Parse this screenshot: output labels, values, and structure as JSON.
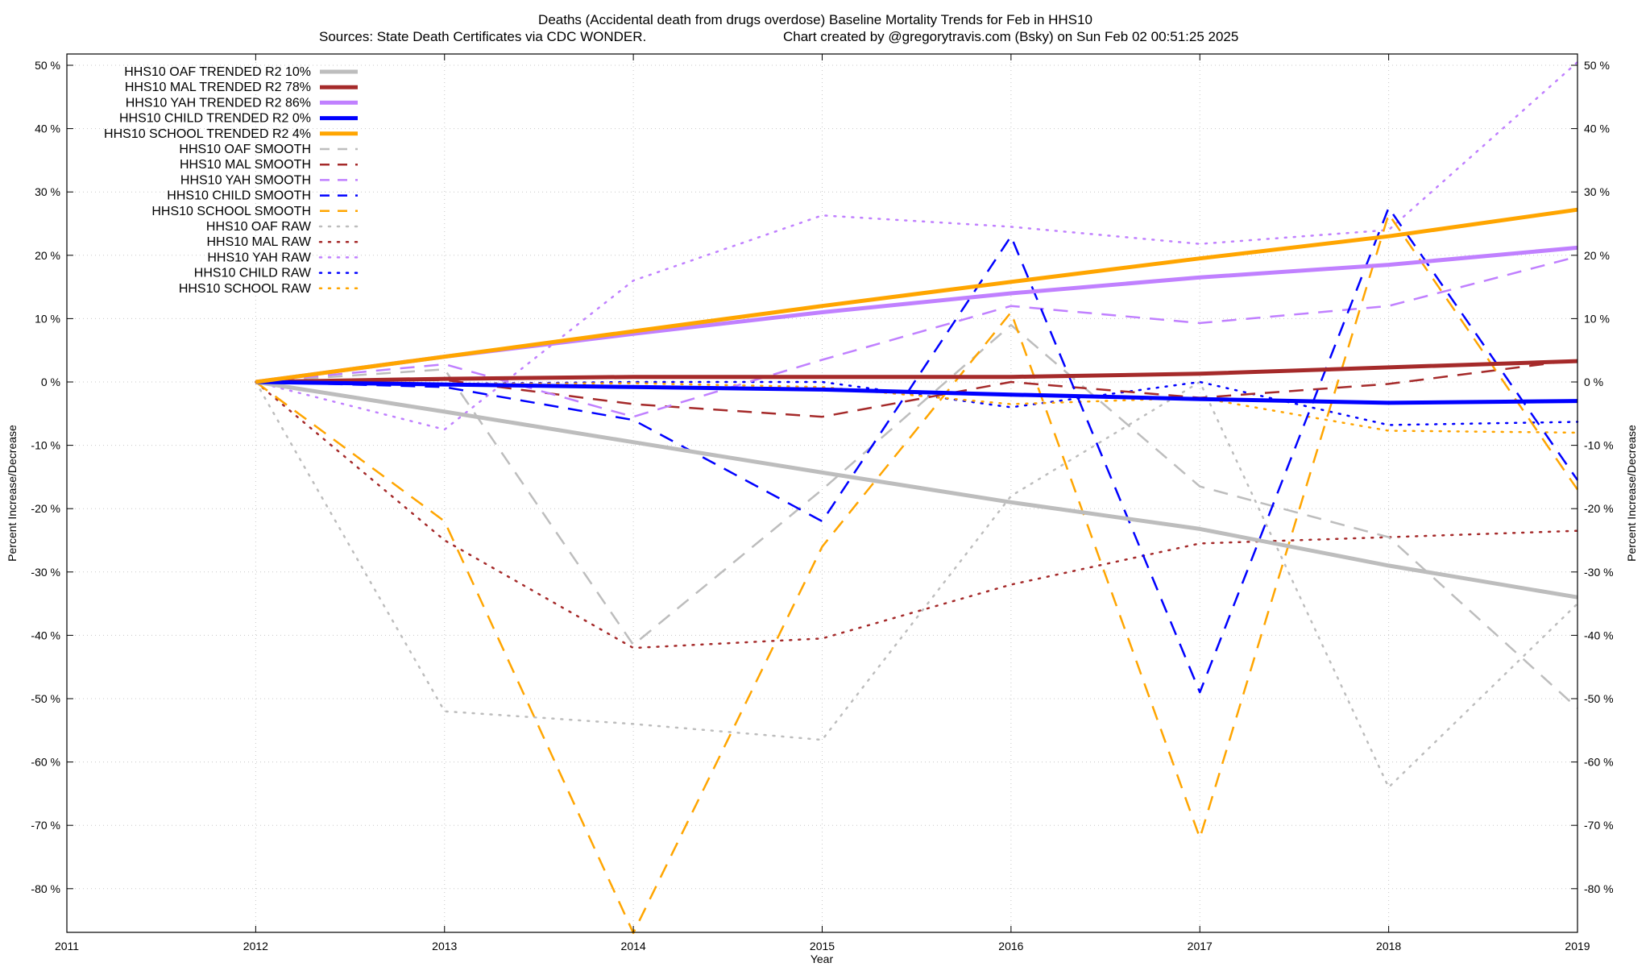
{
  "chart_data": {
    "type": "line",
    "title": "Deaths (Accidental death from drugs overdose)  Baseline Mortality Trends for Feb in HHS10",
    "subtitle_left": "Sources: State Death Certificates via CDC WONDER.",
    "subtitle_right": "Chart created by @gregorytravis.com (Bsky) on Sun Feb 02 00:51:25 2025",
    "xlabel": "Year",
    "ylabel": "Percent Increase/Decrease",
    "ylabel_right": "Percent Increase/Decrease",
    "xlim": [
      2011,
      2019
    ],
    "ylim": [
      -88,
      51
    ],
    "x_ticks": [
      2011,
      2012,
      2013,
      2014,
      2015,
      2016,
      2017,
      2018,
      2019
    ],
    "y_ticks": [
      50,
      40,
      30,
      20,
      10,
      0,
      -10,
      -20,
      -30,
      -40,
      -50,
      -60,
      -70,
      -80
    ],
    "y_tick_labels": [
      "50 %",
      "40 %",
      "30 %",
      "20 %",
      "10 %",
      "0 %",
      "-10 %",
      "-20 %",
      "-30 %",
      "-40 %",
      "-50 %",
      "-60 %",
      "-70 %",
      "-80 %"
    ],
    "grid": true,
    "legend_position": "top-left",
    "series": [
      {
        "name": "HHS10 OAF TRENDED R2  10%",
        "style": "solid",
        "color": "#bdbdbd",
        "x": [
          2012,
          2013,
          2014,
          2015,
          2016,
          2017,
          2018,
          2019
        ],
        "y": [
          0,
          -4.7,
          -9.5,
          -14.3,
          -19.0,
          -23.2,
          -29.0,
          -34.0
        ]
      },
      {
        "name": "HHS10 MAL TRENDED R2  78%",
        "style": "solid",
        "color": "#a52a2a",
        "x": [
          2012,
          2013,
          2014,
          2015,
          2016,
          2017,
          2018,
          2019
        ],
        "y": [
          0,
          0.5,
          0.8,
          0.8,
          0.8,
          1.3,
          2.3,
          3.3
        ]
      },
      {
        "name": "HHS10 YAH TRENDED R2  86%",
        "style": "solid",
        "color": "#c080ff",
        "x": [
          2012,
          2013,
          2014,
          2015,
          2016,
          2017,
          2018,
          2019
        ],
        "y": [
          0,
          4.0,
          7.6,
          11.0,
          14.0,
          16.5,
          18.5,
          21.2
        ]
      },
      {
        "name": "HHS10 CHILD TRENDED R2  0%",
        "style": "solid",
        "color": "#0000ff",
        "x": [
          2012,
          2013,
          2014,
          2015,
          2016,
          2017,
          2018,
          2019
        ],
        "y": [
          0,
          -0.4,
          -0.8,
          -1.2,
          -2.0,
          -2.7,
          -3.3,
          -3.0
        ]
      },
      {
        "name": "HHS10 SCHOOL TRENDED R2  4%",
        "style": "solid",
        "color": "#ffa500",
        "x": [
          2012,
          2013,
          2014,
          2015,
          2016,
          2017,
          2018,
          2019
        ],
        "y": [
          0,
          4.0,
          8.0,
          12.0,
          15.8,
          19.5,
          23.0,
          27.2
        ]
      },
      {
        "name": "HHS10 OAF SMOOTH",
        "style": "dashed",
        "color": "#bdbdbd",
        "x": [
          2012,
          2013,
          2014,
          2015,
          2016,
          2017,
          2018,
          2019
        ],
        "y": [
          0,
          2.0,
          -41.5,
          -17.0,
          9.0,
          -16.5,
          -24.5,
          -51.5
        ]
      },
      {
        "name": "HHS10 MAL SMOOTH",
        "style": "dashed",
        "color": "#a52a2a",
        "x": [
          2012,
          2013,
          2014,
          2015,
          2016,
          2017,
          2018,
          2019
        ],
        "y": [
          0,
          0.3,
          -3.5,
          -5.5,
          0,
          -2.5,
          -0.3,
          3.5
        ]
      },
      {
        "name": "HHS10 YAH SMOOTH",
        "style": "dashed",
        "color": "#c080ff",
        "x": [
          2012,
          2013,
          2014,
          2015,
          2016,
          2017,
          2018,
          2019
        ],
        "y": [
          0,
          2.8,
          -5.5,
          3.5,
          12.0,
          9.3,
          12.0,
          19.8
        ]
      },
      {
        "name": "HHS10 CHILD SMOOTH",
        "style": "dashed",
        "color": "#0000ff",
        "x": [
          2012,
          2013,
          2014,
          2015,
          2016,
          2017,
          2018,
          2019
        ],
        "y": [
          0,
          -0.8,
          -6.0,
          -22.0,
          23.0,
          -49.0,
          27.5,
          -15.5
        ]
      },
      {
        "name": "HHS10 SCHOOL SMOOTH",
        "style": "dashed",
        "color": "#ffa500",
        "x": [
          2012,
          2013,
          2014,
          2015,
          2016,
          2017,
          2018,
          2019
        ],
        "y": [
          0,
          -22.0,
          -87.0,
          -26.0,
          11.0,
          -72.0,
          26.5,
          -17.0
        ]
      },
      {
        "name": "HHS10 OAF RAW",
        "style": "dotted",
        "color": "#bdbdbd",
        "x": [
          2012,
          2013,
          2014,
          2015,
          2016,
          2017,
          2018,
          2019
        ],
        "y": [
          0,
          -52.0,
          -54.0,
          -56.5,
          -18.0,
          0,
          -64.0,
          -35.0
        ]
      },
      {
        "name": "HHS10 MAL RAW",
        "style": "dotted",
        "color": "#a52a2a",
        "x": [
          2012,
          2013,
          2014,
          2015,
          2016,
          2017,
          2018,
          2019
        ],
        "y": [
          0,
          -25.0,
          -42.0,
          -40.5,
          -32.0,
          -25.5,
          -24.5,
          -23.5
        ]
      },
      {
        "name": "HHS10 YAH RAW",
        "style": "dotted",
        "color": "#c080ff",
        "x": [
          2012,
          2013,
          2014,
          2015,
          2016,
          2017,
          2018,
          2019
        ],
        "y": [
          0,
          -7.5,
          16.0,
          26.3,
          24.5,
          21.8,
          24.0,
          50.5
        ]
      },
      {
        "name": "HHS10 CHILD RAW",
        "style": "dotted",
        "color": "#0000ff",
        "x": [
          2012,
          2013,
          2014,
          2015,
          2016,
          2017,
          2018,
          2019
        ],
        "y": [
          0,
          -0.3,
          0,
          0,
          -4.0,
          0,
          -6.8,
          -6.3
        ]
      },
      {
        "name": "HHS10 SCHOOL RAW",
        "style": "dotted",
        "color": "#ffa500",
        "x": [
          2012,
          2013,
          2014,
          2015,
          2016,
          2017,
          2018,
          2019
        ],
        "y": [
          0,
          -0.3,
          -0.2,
          -0.8,
          -3.5,
          -2.5,
          -7.7,
          -8.0
        ]
      }
    ]
  }
}
